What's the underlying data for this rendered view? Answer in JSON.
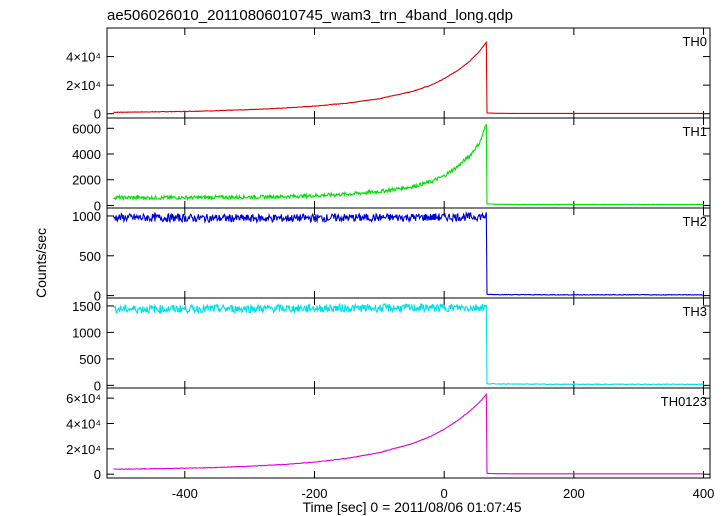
{
  "chart_data": {
    "type": "line",
    "title": "ae506026010_20110806010745_wam3_trn_4band_long.qdp",
    "xlabel": "Time [sec] 0 = 2011/08/06 01:07:45",
    "ylabel": "Counts/sec",
    "xlim": [
      -520,
      410
    ],
    "x_ticks": [
      "-400",
      "-200",
      "0",
      "200",
      "400"
    ],
    "x_tick_values": [
      -400,
      -200,
      0,
      200,
      400
    ],
    "panels": [
      {
        "name": "TH0",
        "color": "#e00000",
        "ylim": [
          -3000,
          60000
        ],
        "y_ticks": [
          {
            "value": 0,
            "label": "0"
          },
          {
            "value": 20000,
            "label": "2×10⁴"
          },
          {
            "value": 40000,
            "label": "4×10⁴"
          }
        ],
        "x": [
          -510,
          -450,
          -400,
          -350,
          -300,
          -250,
          -200,
          -150,
          -100,
          -50,
          -20,
          0,
          20,
          40,
          55,
          65,
          66,
          80,
          100,
          200,
          300,
          400
        ],
        "values": [
          1000,
          1300,
          1600,
          2100,
          2900,
          3900,
          5300,
          7400,
          10500,
          15500,
          20000,
          24500,
          30000,
          37000,
          44000,
          50000,
          500,
          300,
          250,
          200,
          200,
          200
        ]
      },
      {
        "name": "TH1",
        "color": "#00e000",
        "ylim": [
          -200,
          6800
        ],
        "y_ticks": [
          {
            "value": 0,
            "label": "0"
          },
          {
            "value": 2000,
            "label": "2000"
          },
          {
            "value": 4000,
            "label": "4000"
          },
          {
            "value": 6000,
            "label": "6000"
          }
        ],
        "x": [
          -510,
          -450,
          -400,
          -350,
          -300,
          -250,
          -200,
          -150,
          -100,
          -50,
          -20,
          0,
          20,
          40,
          55,
          65,
          66,
          80,
          100,
          200,
          300,
          400
        ],
        "values": [
          620,
          600,
          610,
          630,
          650,
          690,
          760,
          880,
          1080,
          1450,
          1850,
          2300,
          3000,
          3900,
          4900,
          6300,
          120,
          90,
          80,
          80,
          80,
          80
        ]
      },
      {
        "name": "TH2",
        "color": "#0000d0",
        "ylim": [
          -30,
          1100
        ],
        "y_ticks": [
          {
            "value": 0,
            "label": "0"
          },
          {
            "value": 500,
            "label": "500"
          },
          {
            "value": 1000,
            "label": "1000"
          }
        ],
        "x": [
          -510,
          -400,
          -300,
          -200,
          -100,
          0,
          50,
          65,
          66,
          100,
          200,
          300,
          400
        ],
        "values": [
          980,
          975,
          970,
          975,
          980,
          985,
          990,
          1000,
          15,
          12,
          10,
          10,
          10
        ]
      },
      {
        "name": "TH3",
        "color": "#00e0e8",
        "ylim": [
          -50,
          1650
        ],
        "y_ticks": [
          {
            "value": 0,
            "label": "0"
          },
          {
            "value": 500,
            "label": "500"
          },
          {
            "value": 1000,
            "label": "1000"
          },
          {
            "value": 1500,
            "label": "1500"
          }
        ],
        "x": [
          -510,
          -400,
          -300,
          -200,
          -100,
          0,
          50,
          65,
          66,
          100,
          200,
          300,
          400
        ],
        "values": [
          1440,
          1445,
          1450,
          1455,
          1460,
          1465,
          1470,
          1480,
          30,
          25,
          20,
          20,
          20
        ]
      },
      {
        "name": "TH0123",
        "color": "#e000e0",
        "ylim": [
          -3000,
          68000
        ],
        "y_ticks": [
          {
            "value": 0,
            "label": "0"
          },
          {
            "value": 20000,
            "label": "2×10⁴"
          },
          {
            "value": 40000,
            "label": "4×10⁴"
          },
          {
            "value": 60000,
            "label": "6×10⁴"
          }
        ],
        "x": [
          -510,
          -450,
          -400,
          -350,
          -300,
          -250,
          -200,
          -150,
          -100,
          -50,
          -20,
          0,
          20,
          40,
          55,
          65,
          66,
          80,
          100,
          200,
          300,
          400
        ],
        "values": [
          4000,
          4300,
          4700,
          5300,
          6300,
          7600,
          9500,
          12500,
          17000,
          24000,
          30000,
          35500,
          42000,
          50000,
          57000,
          63000,
          700,
          400,
          350,
          300,
          300,
          300
        ]
      }
    ]
  }
}
